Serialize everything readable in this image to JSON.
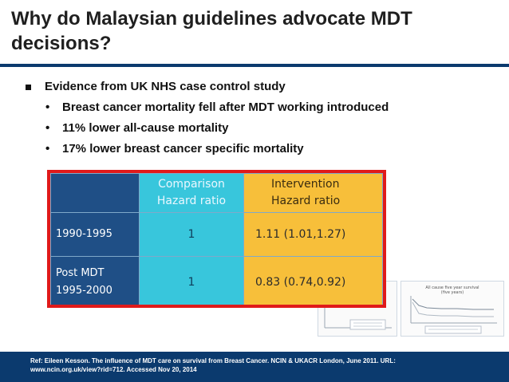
{
  "slide": {
    "title_line1": "Why do Malaysian guidelines advocate MDT",
    "title_line2": "decisions?"
  },
  "bullets": {
    "main": "Evidence from UK NHS case control study",
    "sub": [
      "Breast cancer mortality fell after MDT working introduced",
      "11% lower all-cause mortality",
      "17% lower breast cancer specific mortality"
    ],
    "sub_marker": "•"
  },
  "table": {
    "header_comparison_1": "Comparison",
    "header_comparison_2": "Hazard ratio",
    "header_intervention_1": "Intervention",
    "header_intervention_2": "Hazard ratio",
    "rows": [
      {
        "label_1": "1990-1995",
        "label_2": "",
        "comparison": "1",
        "intervention": "1.11  (1.01,1.27)"
      },
      {
        "label_1": "Post MDT",
        "label_2": "1995-2000",
        "comparison": "1",
        "intervention": "0.83  (0.74,0.92)"
      }
    ]
  },
  "figures": {
    "chart2_title": "All cause five year survival",
    "chart2_subtitle": "(five years)"
  },
  "footer": {
    "ref_line1": "Ref:  Eileen Kesson. The influence of MDT care on survival from Breast Cancer. NCIN & UKACR London, June 2011. URL:",
    "ref_line2": "www.ncin.org.uk/view?rid=712. Accessed Nov 20, 2014"
  },
  "colors": {
    "navy": "#0b3a6e",
    "table_label_bg": "#1f4f86",
    "comparison_bg": "#38c6dc",
    "intervention_bg": "#f7bf3a",
    "highlight_border": "#e01a1a"
  }
}
